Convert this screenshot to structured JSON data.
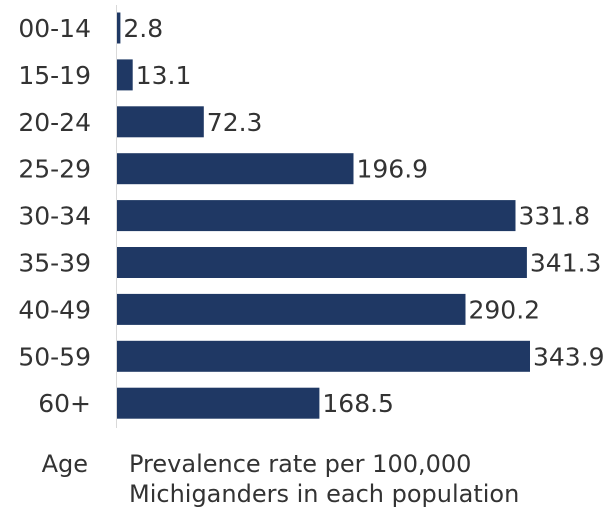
{
  "chart_data": {
    "type": "bar",
    "orientation": "horizontal",
    "categories": [
      "00-14",
      "15-19",
      "20-24",
      "25-29",
      "30-34",
      "35-39",
      "40-49",
      "50-59",
      "60+"
    ],
    "values": [
      2.8,
      13.1,
      72.3,
      196.9,
      331.8,
      341.3,
      290.2,
      343.9,
      168.5
    ],
    "value_labels": [
      "2.8",
      "13.1",
      "72.3",
      "196.9",
      "331.8",
      "341.3",
      "290.2",
      "343.9",
      "168.5"
    ],
    "xlabel_line1": "Prevalence rate per 100,000",
    "xlabel_line2": "Michiganders in each population",
    "ylabel": "Age",
    "xlim": [
      0,
      343.9
    ],
    "grid": false,
    "bar_color": "#1f3864",
    "text_color": "#333333",
    "axis_color": "#d9d9d9"
  }
}
